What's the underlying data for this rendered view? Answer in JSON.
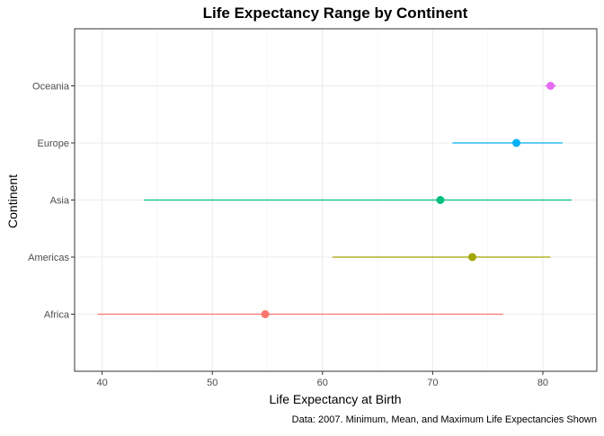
{
  "chart_data": {
    "type": "dot-range",
    "title": "Life Expectancy Range by Continent",
    "xlabel": "Life Expectancy at Birth",
    "ylabel": "Continent",
    "caption": "Data: 2007. Minimum, Mean, and Maximum Life Expectancies Shown",
    "xlim": [
      37.5,
      84.9
    ],
    "x_ticks": [
      40,
      50,
      60,
      70,
      80
    ],
    "grid": true,
    "legend": "none",
    "categories": [
      "Africa",
      "Americas",
      "Asia",
      "Europe",
      "Oceania"
    ],
    "series": [
      {
        "category": "Africa",
        "min": 39.6,
        "mean": 54.8,
        "max": 76.4,
        "color": "#F8766D"
      },
      {
        "category": "Americas",
        "min": 60.9,
        "mean": 73.6,
        "max": 80.7,
        "color": "#A3A500"
      },
      {
        "category": "Asia",
        "min": 43.8,
        "mean": 70.7,
        "max": 82.6,
        "color": "#00BF7D"
      },
      {
        "category": "Europe",
        "min": 71.8,
        "mean": 77.6,
        "max": 81.8,
        "color": "#00B0F6"
      },
      {
        "category": "Oceania",
        "min": 80.2,
        "mean": 80.7,
        "max": 81.2,
        "color": "#E76BF3"
      }
    ]
  }
}
